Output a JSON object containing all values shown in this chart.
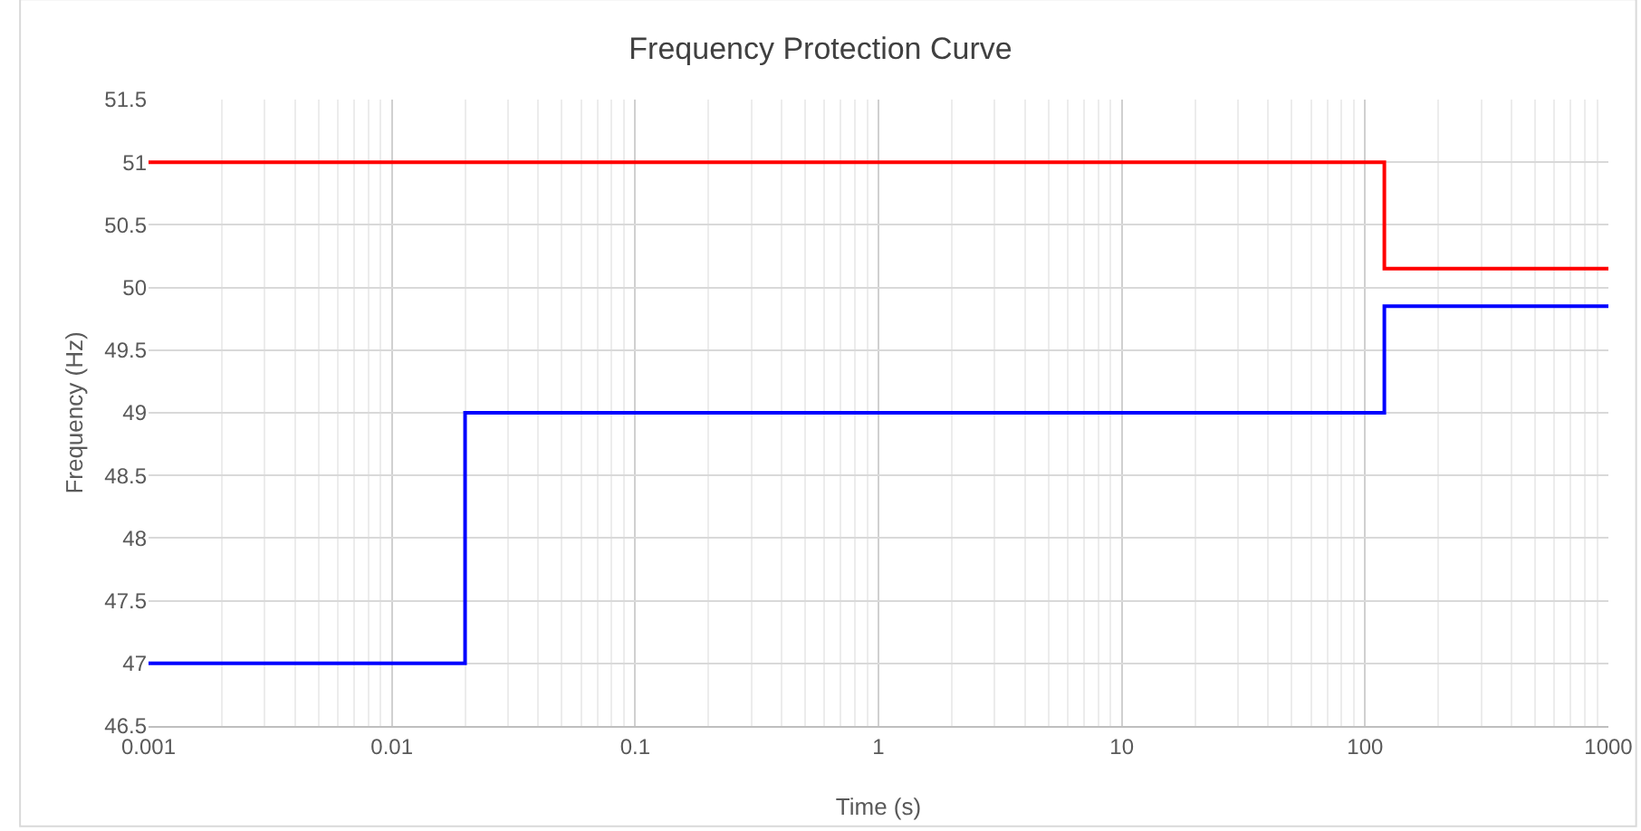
{
  "chart_data": {
    "type": "step",
    "title": "Frequency Protection Curve",
    "xlabel": "Time (s)",
    "ylabel": "Frequency (Hz)",
    "log": "x",
    "grid": true,
    "xlim": [
      0.001,
      1000
    ],
    "xticks": [
      0.001,
      0.01,
      0.1,
      1,
      10,
      100,
      1000
    ],
    "ylim": [
      46.5,
      51.5
    ],
    "yticks": [
      46.5,
      47,
      47.5,
      48,
      48.5,
      49,
      49.5,
      50,
      50.5,
      51,
      51.5
    ],
    "series": [
      {
        "color": "#ff0000",
        "x": [
          0.001,
          120,
          120,
          1000
        ],
        "values": [
          51,
          51,
          50.15,
          50.15
        ]
      },
      {
        "color": "#0000ff",
        "x": [
          0.001,
          0.02,
          0.02,
          120,
          120,
          1000
        ],
        "values": [
          47,
          47,
          49,
          49,
          49.85,
          49.85
        ]
      }
    ]
  }
}
